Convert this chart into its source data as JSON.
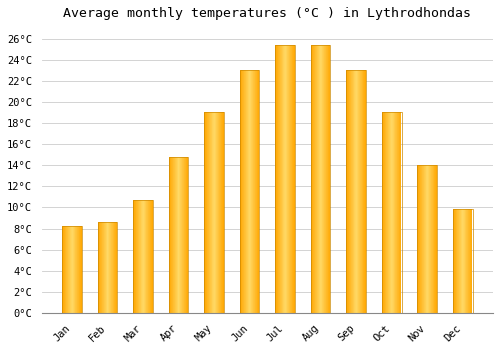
{
  "title": "Average monthly temperatures (°C ) in Lythrodhondas",
  "months": [
    "Jan",
    "Feb",
    "Mar",
    "Apr",
    "May",
    "Jun",
    "Jul",
    "Aug",
    "Sep",
    "Oct",
    "Nov",
    "Dec"
  ],
  "values": [
    8.2,
    8.6,
    10.7,
    14.8,
    19.0,
    23.0,
    25.4,
    25.4,
    23.0,
    19.0,
    14.0,
    9.9
  ],
  "bar_color_center": "#FFD966",
  "bar_color_edge": "#FFA500",
  "ylim": [
    0,
    27
  ],
  "yticks": [
    0,
    2,
    4,
    6,
    8,
    10,
    12,
    14,
    16,
    18,
    20,
    22,
    24,
    26
  ],
  "background_color": "#ffffff",
  "grid_color": "#cccccc",
  "title_fontsize": 9.5,
  "tick_fontsize": 7.5,
  "font_family": "monospace",
  "bar_width": 0.55
}
